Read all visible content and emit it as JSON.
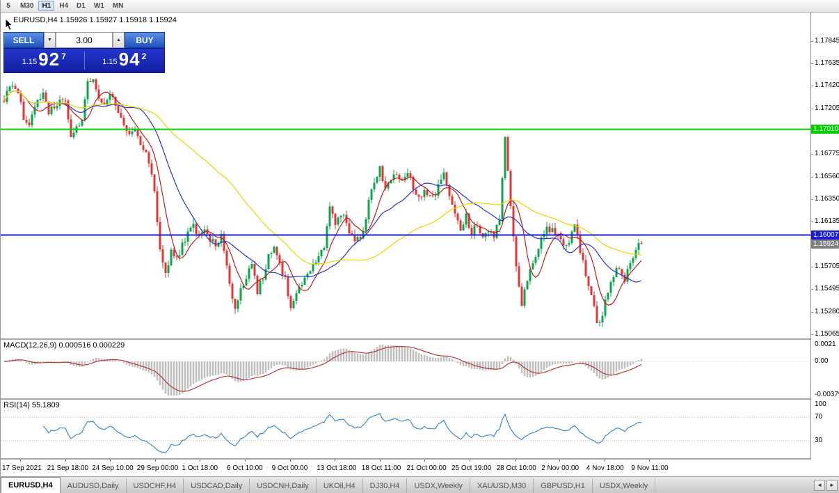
{
  "toolbar": {
    "buttons": [
      "5",
      "M30",
      "H1",
      "H4",
      "D1",
      "W1",
      "MN"
    ],
    "active": "H1"
  },
  "chart_header": {
    "symbol_ohlc": "EURUSD,H4 1.15926 1.15927 1.15918 1.15924"
  },
  "trade_panel": {
    "sell": "SELL",
    "buy": "BUY",
    "volume": "3.00",
    "spin_down_icon": "▼",
    "spin_up_icon": "▲",
    "sell_small": "1.15",
    "sell_big": "92",
    "sell_sup": "7",
    "buy_small": "1.15",
    "buy_big": "94",
    "buy_sup": "2"
  },
  "price_axis": {
    "ticks": [
      "1.17845",
      "1.17635",
      "1.17420",
      "1.17205",
      "1.16775",
      "1.16560",
      "1.16350",
      "1.16135",
      "1.15705",
      "1.15495",
      "1.15280",
      "1.15065"
    ],
    "hline_green": {
      "price": 1.1701,
      "label": "1.17010"
    },
    "hline_blue": {
      "price": 1.16007,
      "label": "1.16007"
    },
    "current": {
      "price": 1.15924,
      "label": "1.15924"
    }
  },
  "macd_panel": {
    "label": "MACD(12,26,9) 0.000516 0.000229",
    "ticks": [
      {
        "v": 0.0021,
        "label": "0.0021"
      },
      {
        "v": 0,
        "label": "0.00"
      },
      {
        "v": -0.00379,
        "label": "-0.00379"
      }
    ]
  },
  "rsi_panel": {
    "label": "RSI(14) 55.1809",
    "ticks": [
      {
        "v": 100,
        "label": "100"
      },
      {
        "v": 70,
        "label": "70"
      },
      {
        "v": 30,
        "label": "30"
      }
    ]
  },
  "tabs": {
    "items": [
      "EURUSD,H4",
      "AUDUSD,Daily",
      "USDCHF,H4",
      "USDCAD,Daily",
      "USDCNH,Daily",
      "UKOil,H4",
      "DJ30,H4",
      "USDX,Weekly",
      "XAUUSD,M30",
      "GBPUSD,H1",
      "USDX,Weekly"
    ],
    "active": 0,
    "scroll_left_icon": "◄",
    "scroll_right_icon": "►"
  },
  "colors": {
    "candle_up": "#0CA44C",
    "candle_down": "#DF3636",
    "ma_red": "#C41A1A",
    "ma_blue": "#2438C8",
    "ma_yellow": "#EDD500",
    "hline_green": "#00CF00",
    "hline_blue": "#1C1CD0",
    "current_price_bg": "#808080",
    "macd_hist": "#C0C0C0",
    "macd_signal": "#B03A3A",
    "rsi_line": "#4189C9",
    "rsi_levels": "#C4C4C4"
  },
  "chart_data": {
    "type": "candlestick",
    "symbol": "EURUSD",
    "timeframe": "H4",
    "ohlc_current": {
      "open": 1.15926,
      "high": 1.15927,
      "low": 1.15918,
      "close": 1.15924
    },
    "y_range": [
      1.15027,
      1.18116
    ],
    "candle_count": 230,
    "price_waypoints": [
      [
        0,
        1.1728
      ],
      [
        2,
        1.1744
      ],
      [
        5,
        1.1738
      ],
      [
        7,
        1.1712
      ],
      [
        9,
        1.1703
      ],
      [
        12,
        1.173
      ],
      [
        14,
        1.1736
      ],
      [
        16,
        1.1718
      ],
      [
        19,
        1.1726
      ],
      [
        22,
        1.1729
      ],
      [
        24,
        1.1694
      ],
      [
        26,
        1.1702
      ],
      [
        28,
        1.1712
      ],
      [
        30,
        1.1744
      ],
      [
        32,
        1.175
      ],
      [
        34,
        1.1728
      ],
      [
        36,
        1.1726
      ],
      [
        38,
        1.1737
      ],
      [
        40,
        1.1722
      ],
      [
        43,
        1.1705
      ],
      [
        45,
        1.1697
      ],
      [
        47,
        1.1702
      ],
      [
        49,
        1.1688
      ],
      [
        51,
        1.1682
      ],
      [
        53,
        1.1661
      ],
      [
        54,
        1.164
      ],
      [
        56,
        1.1588
      ],
      [
        58,
        1.1566
      ],
      [
        60,
        1.1585
      ],
      [
        62,
        1.1578
      ],
      [
        64,
        1.159
      ],
      [
        66,
        1.1602
      ],
      [
        68,
        1.1612
      ],
      [
        70,
        1.1598
      ],
      [
        72,
        1.1606
      ],
      [
        74,
        1.1597
      ],
      [
        76,
        1.1592
      ],
      [
        78,
        1.16
      ],
      [
        80,
        1.1574
      ],
      [
        82,
        1.154
      ],
      [
        83,
        1.153
      ],
      [
        85,
        1.1552
      ],
      [
        87,
        1.156
      ],
      [
        89,
        1.1575
      ],
      [
        91,
        1.1548
      ],
      [
        93,
        1.1562
      ],
      [
        95,
        1.158
      ],
      [
        97,
        1.1588
      ],
      [
        99,
        1.1572
      ],
      [
        101,
        1.1558
      ],
      [
        103,
        1.1534
      ],
      [
        105,
        1.1543
      ],
      [
        107,
        1.1556
      ],
      [
        109,
        1.1562
      ],
      [
        111,
        1.157
      ],
      [
        113,
        1.1578
      ],
      [
        115,
        1.159
      ],
      [
        117,
        1.1628
      ],
      [
        119,
        1.1612
      ],
      [
        121,
        1.1622
      ],
      [
        123,
        1.1611
      ],
      [
        125,
        1.1598
      ],
      [
        127,
        1.1596
      ],
      [
        129,
        1.1604
      ],
      [
        131,
        1.1632
      ],
      [
        133,
        1.165
      ],
      [
        135,
        1.1663
      ],
      [
        137,
        1.1644
      ],
      [
        139,
        1.1652
      ],
      [
        141,
        1.1658
      ],
      [
        143,
        1.165
      ],
      [
        145,
        1.1662
      ],
      [
        147,
        1.1644
      ],
      [
        149,
        1.1634
      ],
      [
        151,
        1.164
      ],
      [
        153,
        1.1636
      ],
      [
        155,
        1.164
      ],
      [
        157,
        1.1653
      ],
      [
        158,
        1.1662
      ],
      [
        160,
        1.1638
      ],
      [
        162,
        1.1618
      ],
      [
        164,
        1.1608
      ],
      [
        166,
        1.1618
      ],
      [
        168,
        1.1601
      ],
      [
        170,
        1.1612
      ],
      [
        172,
        1.1597
      ],
      [
        174,
        1.1604
      ],
      [
        176,
        1.1601
      ],
      [
        178,
        1.1618
      ],
      [
        180,
        1.1692
      ],
      [
        182,
        1.1625
      ],
      [
        184,
        1.1572
      ],
      [
        186,
        1.1535
      ],
      [
        188,
        1.1558
      ],
      [
        190,
        1.1572
      ],
      [
        192,
        1.159
      ],
      [
        194,
        1.1604
      ],
      [
        197,
        1.1608
      ],
      [
        200,
        1.1596
      ],
      [
        203,
        1.159
      ],
      [
        205,
        1.1612
      ],
      [
        207,
        1.1586
      ],
      [
        209,
        1.1562
      ],
      [
        211,
        1.1545
      ],
      [
        213,
        1.1517
      ],
      [
        215,
        1.1525
      ],
      [
        217,
        1.1548
      ],
      [
        219,
        1.1562
      ],
      [
        221,
        1.1572
      ],
      [
        223,
        1.1556
      ],
      [
        225,
        1.1576
      ],
      [
        227,
        1.1588
      ],
      [
        229,
        1.1592
      ]
    ],
    "overlays": {
      "horizontal_lines": [
        {
          "price": 1.1701,
          "color": "green"
        },
        {
          "price": 1.16007,
          "color": "blue"
        }
      ],
      "moving_averages": [
        {
          "color": "red",
          "period": 8
        },
        {
          "color": "blue",
          "period": 21
        },
        {
          "color": "yellow",
          "period": 55
        }
      ]
    },
    "indicators": [
      {
        "name": "MACD",
        "params": "12,26,9",
        "values": [
          0.000516,
          0.000229
        ],
        "range": [
          -0.004,
          0.00235
        ]
      },
      {
        "name": "RSI",
        "params": "14",
        "value": 55.1809,
        "range": [
          0,
          100
        ],
        "levels": [
          70,
          30
        ]
      }
    ],
    "time_labels": [
      "17 Sep 2021",
      "21 Sep 18:00",
      "24 Sep 10:00",
      "29 Sep 00:00",
      "1 Oct 18:00",
      "6 Oct 10:00",
      "9 Oct 00:00",
      "13 Oct 18:00",
      "18 Oct 11:00",
      "21 Oct 00:00",
      "25 Oct 19:00",
      "28 Oct 10:00",
      "2 Nov 00:00",
      "4 Nov 18:00",
      "9 Nov 11:00"
    ]
  }
}
